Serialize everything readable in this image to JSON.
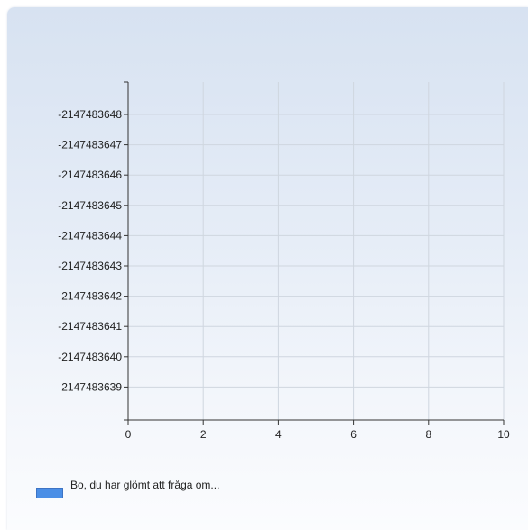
{
  "chart_data": {
    "type": "bar",
    "x": {
      "min": 0,
      "max": 10,
      "ticks": [
        0,
        2,
        4,
        6,
        8,
        10
      ],
      "tick_labels": [
        "0",
        "2",
        "4",
        "6",
        "8",
        "10"
      ]
    },
    "y": {
      "ticks": [
        -2147483648,
        -2147483647,
        -2147483646,
        -2147483645,
        -2147483644,
        -2147483643,
        -2147483642,
        -2147483641,
        -2147483640,
        -2147483639
      ],
      "tick_labels": [
        "-2147483648",
        "-2147483647",
        "-2147483646",
        "-2147483645",
        "-2147483644",
        "-2147483643",
        "-2147483642",
        "-2147483641",
        "-2147483640",
        "-2147483639"
      ]
    },
    "grid": true,
    "legend_position": "bottom-left",
    "series": [
      {
        "name": "Bo, du har glömt att fråga om...",
        "values": [],
        "color": "#4a8ee6"
      }
    ],
    "title": "",
    "xlabel": "",
    "ylabel": ""
  },
  "colors": {
    "grid": "#cfd6df",
    "axis": "#333333",
    "series": "#4a8ee6"
  }
}
